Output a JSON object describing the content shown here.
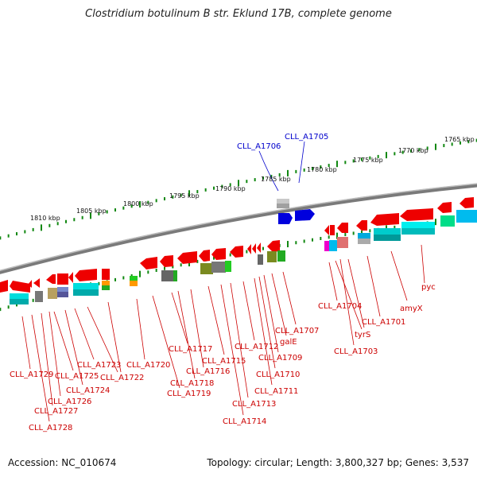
{
  "title": "Clostridium botulinum B str. Eklund 17B, complete genome",
  "accession_label": "Accession: NC_010674",
  "topology_label": "Topology: circular; Length: 3,800,327 bp; Genes: 3,537",
  "colors": {
    "backbone": "#888888",
    "tick": "#118811",
    "label_red": "#cc0000",
    "label_blue": "#0000cc"
  },
  "ticks": [
    {
      "label": "1810 kbp"
    },
    {
      "label": "1805 kbp"
    },
    {
      "label": "1800 kbp"
    },
    {
      "label": "1795 kbp"
    },
    {
      "label": "1790 kbp"
    },
    {
      "label": "1785 kbp"
    },
    {
      "label": "1780 kbp"
    },
    {
      "label": "1775 kbp"
    },
    {
      "label": "1770 kbp"
    },
    {
      "label": "1765 kbp"
    }
  ],
  "gene_labels": [
    {
      "name": "CLL_A1706",
      "color": "blue"
    },
    {
      "name": "CLL_A1705",
      "color": "blue"
    },
    {
      "name": "CLL_A1729",
      "color": "red"
    },
    {
      "name": "CLL_A1728",
      "color": "red"
    },
    {
      "name": "CLL_A1727",
      "color": "red"
    },
    {
      "name": "CLL_A1726",
      "color": "red"
    },
    {
      "name": "CLL_A1725",
      "color": "red"
    },
    {
      "name": "CLL_A1724",
      "color": "red"
    },
    {
      "name": "CLL_A1723",
      "color": "red"
    },
    {
      "name": "CLL_A1722",
      "color": "red"
    },
    {
      "name": "CLL_A1720",
      "color": "red"
    },
    {
      "name": "CLL_A1719",
      "color": "red"
    },
    {
      "name": "CLL_A1718",
      "color": "red"
    },
    {
      "name": "CLL_A1717",
      "color": "red"
    },
    {
      "name": "CLL_A1716",
      "color": "red"
    },
    {
      "name": "CLL_A1715",
      "color": "red"
    },
    {
      "name": "CLL_A1714",
      "color": "red"
    },
    {
      "name": "CLL_A1713",
      "color": "red"
    },
    {
      "name": "CLL_A1712",
      "color": "red"
    },
    {
      "name": "CLL_A1711",
      "color": "red"
    },
    {
      "name": "CLL_A1710",
      "color": "red"
    },
    {
      "name": "CLL_A1709",
      "color": "red"
    },
    {
      "name": "galE",
      "color": "red"
    },
    {
      "name": "CLL_A1707",
      "color": "red"
    },
    {
      "name": "CLL_A1704",
      "color": "red"
    },
    {
      "name": "tyrS",
      "color": "red"
    },
    {
      "name": "CLL_A1703",
      "color": "red"
    },
    {
      "name": "CLL_A1701",
      "color": "red"
    },
    {
      "name": "amyX",
      "color": "red"
    },
    {
      "name": "pyc",
      "color": "red"
    }
  ]
}
